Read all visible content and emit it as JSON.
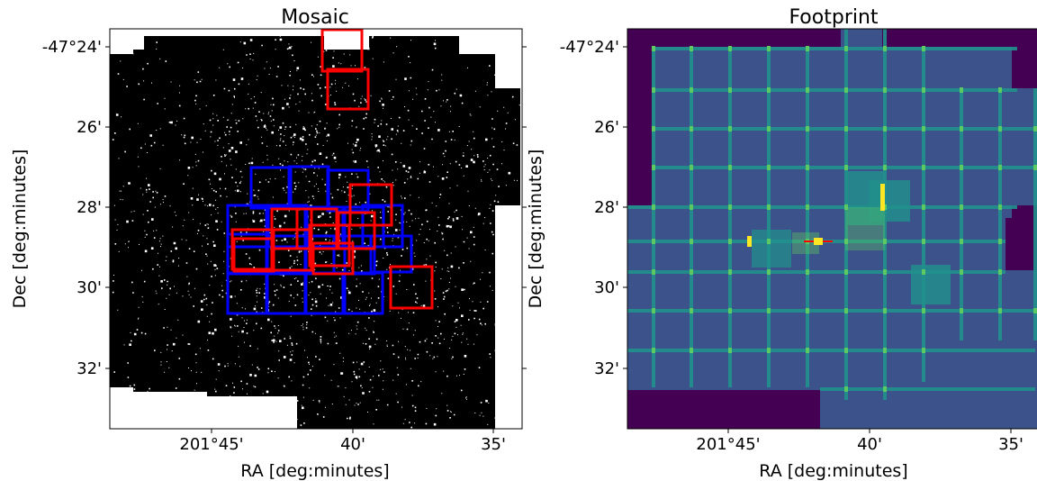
{
  "chart_data": [
    {
      "type": "heatmap",
      "title": "Mosaic",
      "xlabel": "RA [deg:minutes]",
      "ylabel": "Dec [deg:minutes]",
      "x_ticks": [
        "201°45'",
        "40'",
        "35'"
      ],
      "y_ticks": [
        "-47°24'",
        "26'",
        "28'",
        "30'",
        "32'"
      ],
      "image": "star-field-mosaic",
      "overlay_colors": {
        "blue": "#0000ff",
        "red": "#ff0000"
      },
      "blue_rows": [
        4,
        6,
        4
      ],
      "red_frames": 12
    },
    {
      "type": "heatmap",
      "title": "Footprint",
      "xlabel": "RA [deg:minutes]",
      "ylabel": "Dec [deg:minutes]",
      "x_ticks": [
        "201°45'",
        "40'",
        "35'"
      ],
      "y_ticks": [
        "-47°24'",
        "26'",
        "28'",
        "30'",
        "32'"
      ],
      "colormap": "viridis",
      "colors": {
        "background": "#440154",
        "coverage": "#3b528b",
        "overlap": "#21918c",
        "overlap_high": "#5ec962",
        "peak": "#fde725"
      }
    }
  ]
}
